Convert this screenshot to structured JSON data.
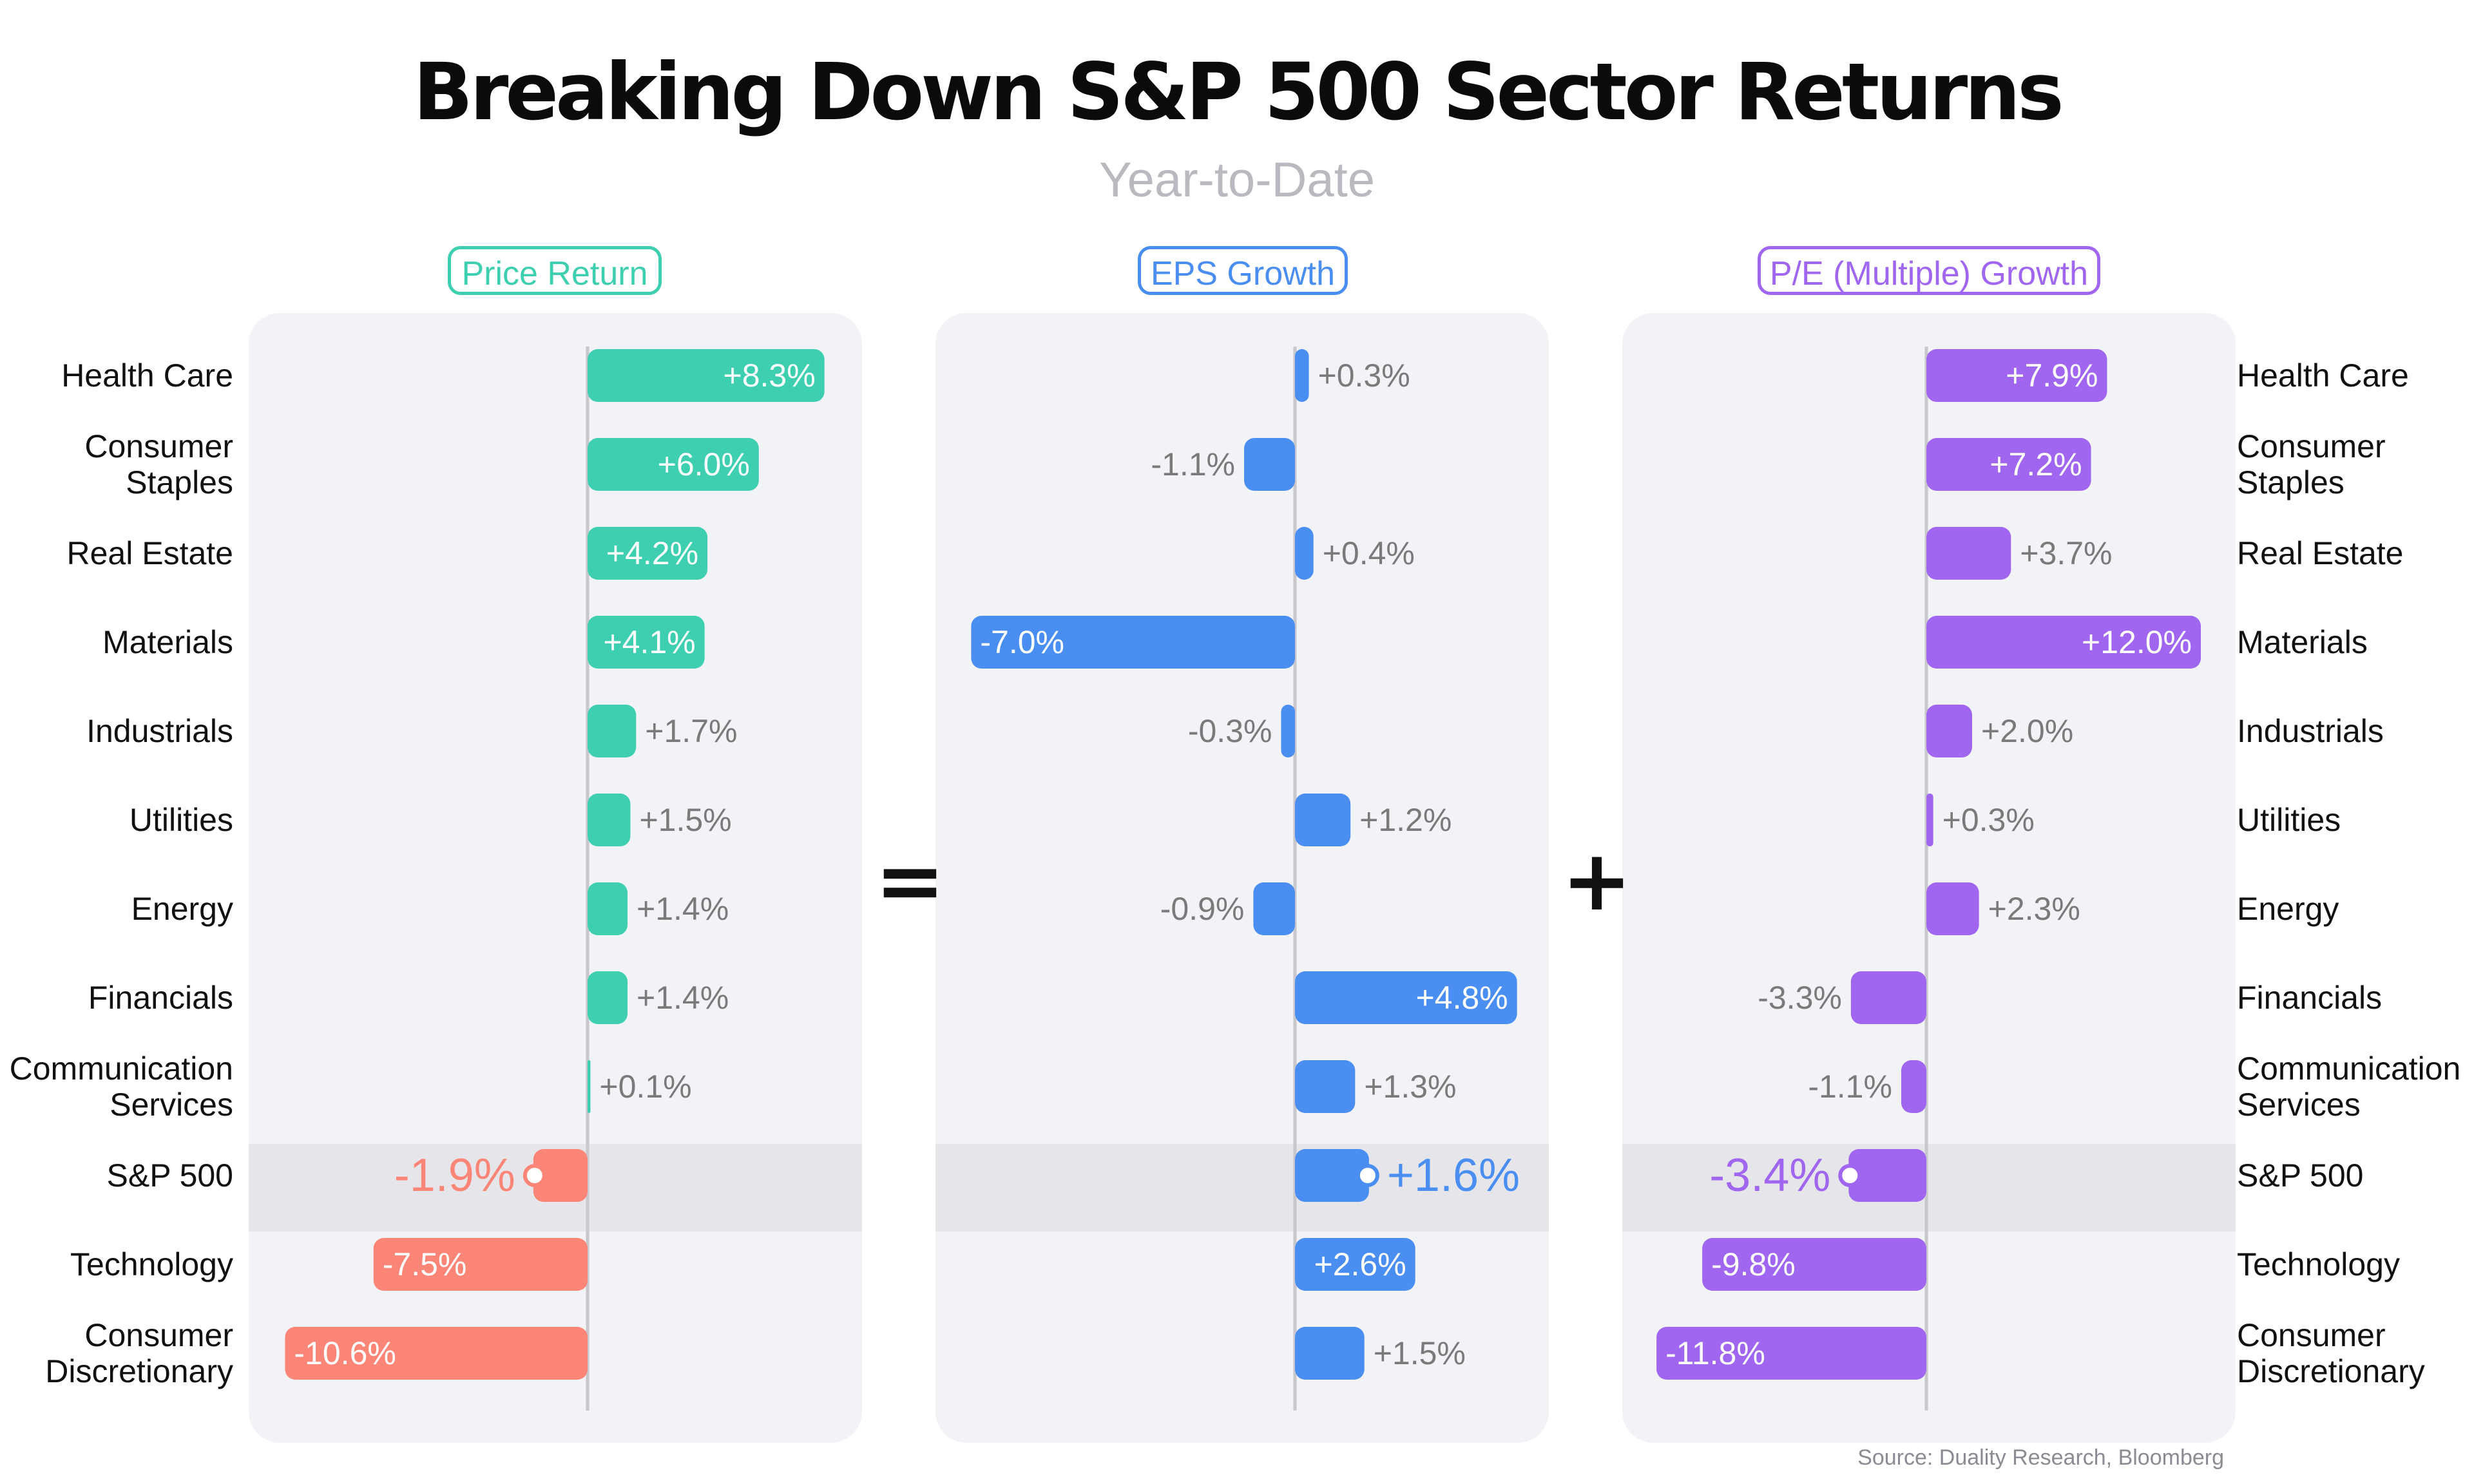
{
  "title": "Breaking Down S&P 500 Sector Returns",
  "subtitle": "Year-to-Date",
  "operators": {
    "equals": "=",
    "plus": "+"
  },
  "source": "Source: Duality Research, Bloomberg",
  "colors": {
    "price_positive": "#3ecfb0",
    "price_negative": "#fb8577",
    "eps": "#4a8ef2",
    "pe": "#a066f0",
    "axis": "#c7c7cc",
    "label": "#7a7a7a"
  },
  "chart_data": {
    "type": "bar",
    "orientation": "horizontal",
    "categories": [
      "Health Care",
      "Consumer\nStaples",
      "Real Estate",
      "Materials",
      "Industrials",
      "Utilities",
      "Energy",
      "Financials",
      "Communication\nServices",
      "S&P 500",
      "Technology",
      "Consumer\nDiscretionary"
    ],
    "highlight_category": "S&P 500",
    "series": [
      {
        "name": "Price Return",
        "values": [
          8.3,
          6.0,
          4.2,
          4.1,
          1.7,
          1.5,
          1.4,
          1.4,
          0.1,
          -1.9,
          -7.5,
          -10.6
        ],
        "labels": [
          "+8.3%",
          "+6.0%",
          "+4.2%",
          "+4.1%",
          "+1.7%",
          "+1.5%",
          "+1.4%",
          "+1.4%",
          "+0.1%",
          "-1.9%",
          "-7.5%",
          "-10.6%"
        ],
        "color": "#3ecfb0",
        "negative_color": "#fb8577",
        "highlight_label_color": "#fb8577"
      },
      {
        "name": "EPS Growth",
        "values": [
          0.3,
          -1.1,
          0.4,
          -7.0,
          -0.3,
          1.2,
          -0.9,
          4.8,
          1.3,
          1.6,
          2.6,
          1.5
        ],
        "labels": [
          "+0.3%",
          "-1.1%",
          "+0.4%",
          "-7.0%",
          "-0.3%",
          "+1.2%",
          "-0.9%",
          "+4.8%",
          "+1.3%",
          "+1.6%",
          "+2.6%",
          "+1.5%"
        ],
        "color": "#4a8ef2",
        "negative_color": "#4a8ef2",
        "highlight_label_color": "#4a8ef2"
      },
      {
        "name": "P/E (Multiple) Growth",
        "values": [
          7.9,
          7.2,
          3.7,
          12.0,
          2.0,
          0.3,
          2.3,
          -3.3,
          -1.1,
          -3.4,
          -9.8,
          -11.8
        ],
        "labels": [
          "+7.9%",
          "+7.2%",
          "+3.7%",
          "+12.0%",
          "+2.0%",
          "+0.3%",
          "+2.3%",
          "-3.3%",
          "-1.1%",
          "-3.4%",
          "-9.8%",
          "-11.8%"
        ],
        "color": "#a066f0",
        "negative_color": "#a066f0",
        "highlight_label_color": "#a066f0"
      }
    ],
    "grid": false,
    "legend": "none"
  }
}
